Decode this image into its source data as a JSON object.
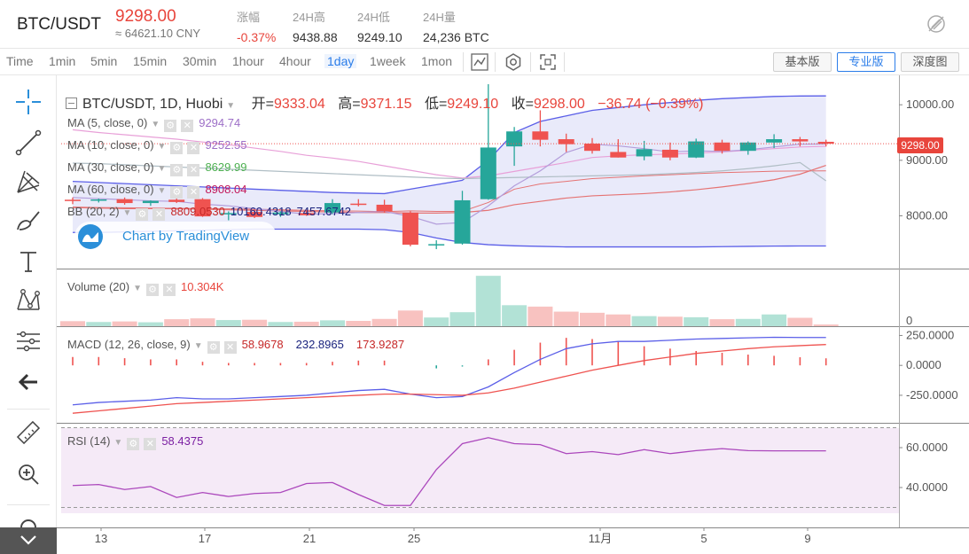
{
  "header": {
    "pair": "BTC/USDT",
    "price": "9298.00",
    "price_cny": "≈ 64621.10 CNY",
    "stats": [
      {
        "label": "涨幅",
        "value": "-0.37%",
        "red": true
      },
      {
        "label": "24H高",
        "value": "9438.88",
        "red": false
      },
      {
        "label": "24H低",
        "value": "9249.10",
        "red": false
      },
      {
        "label": "24H量",
        "value": "24,236 BTC",
        "red": false
      }
    ]
  },
  "toolbar": {
    "timeframes": [
      "Time",
      "1min",
      "5min",
      "15min",
      "30min",
      "1hour",
      "4hour",
      "1day",
      "1week",
      "1mon"
    ],
    "active_timeframe": "1day",
    "views": [
      "基本版",
      "专业版",
      "深度图"
    ],
    "active_view": "专业版"
  },
  "left_tools": [
    "crosshair-icon",
    "trendline-icon",
    "pitchfork-icon",
    "brush-icon",
    "text-icon",
    "pattern-icon",
    "measure-icon",
    "back-arrow-icon",
    "ruler-icon",
    "zoom-in-icon",
    "magnet-icon"
  ],
  "legend": {
    "ohlc_title": "BTC/USDT, 1D, Huobi",
    "open_label": "开=",
    "open": "9333.04",
    "high_label": "高=",
    "high": "9371.15",
    "low_label": "低=",
    "low": "9249.10",
    "close_label": "收=",
    "close": "9298.00",
    "change": "−36.74 (−0.39%)",
    "ma5_label": "MA (5, close, 0)",
    "ma5": "9294.74",
    "ma10_label": "MA (10, close, 0)",
    "ma10": "9252.55",
    "ma30_label": "MA (30, close, 0)",
    "ma30": "8629.99",
    "ma60_label": "MA (60, close, 0)",
    "ma60": "8908.04",
    "bb_label": "BB (20, 2)",
    "bb_mid": "8809.0530",
    "bb_up": "10160.4318",
    "bb_low": "7457.6742",
    "volume_label": "Volume (20)",
    "volume": "10.304K",
    "macd_label": "MACD (12, 26, close, 9)",
    "macd_hist": "58.9678",
    "macd_line": "232.8965",
    "macd_signal": "173.9287",
    "rsi_label": "RSI (14)",
    "rsi": "58.4375"
  },
  "watermark": "Chart by TradingView",
  "colors": {
    "up": "#26a69a",
    "down": "#ef5350",
    "ma5": "#9d6fc7",
    "ma10": "#e8a0d8",
    "ma30": "#4caf50",
    "ma60": "#e84c8a",
    "bb": "#5b5fe8"
  },
  "chart_data": {
    "type": "candlestick",
    "x_ticks": [
      "13",
      "17",
      "21",
      "25",
      "11月",
      "5",
      "9"
    ],
    "price_ticks": [
      "10000.00",
      "9000.00",
      "8000.00"
    ],
    "last_price": "9298.00",
    "volume_ticks": [
      "0"
    ],
    "macd_ticks": [
      "250.0000",
      "0.0000",
      "-250.0000"
    ],
    "rsi_ticks": [
      "60.0000",
      "40.0000"
    ],
    "rsi_range": [
      0,
      100
    ],
    "candles": [
      {
        "o": 8290,
        "h": 8330,
        "l": 8210,
        "c": 8280,
        "v": 180
      },
      {
        "o": 8280,
        "h": 8310,
        "l": 8240,
        "c": 8295,
        "v": 150
      },
      {
        "o": 8300,
        "h": 8330,
        "l": 8200,
        "c": 8230,
        "v": 170
      },
      {
        "o": 8230,
        "h": 8280,
        "l": 8180,
        "c": 8270,
        "v": 140
      },
      {
        "o": 8290,
        "h": 8320,
        "l": 8230,
        "c": 8250,
        "v": 250
      },
      {
        "o": 8300,
        "h": 8320,
        "l": 7980,
        "c": 7990,
        "v": 280
      },
      {
        "o": 8040,
        "h": 8080,
        "l": 7920,
        "c": 8050,
        "v": 220
      },
      {
        "o": 8070,
        "h": 8110,
        "l": 7960,
        "c": 7980,
        "v": 230
      },
      {
        "o": 8030,
        "h": 8080,
        "l": 7980,
        "c": 8060,
        "v": 150
      },
      {
        "o": 8050,
        "h": 8100,
        "l": 8000,
        "c": 8010,
        "v": 160
      },
      {
        "o": 8060,
        "h": 8300,
        "l": 8030,
        "c": 8230,
        "v": 210
      },
      {
        "o": 8220,
        "h": 8300,
        "l": 8170,
        "c": 8215,
        "v": 190
      },
      {
        "o": 8200,
        "h": 8290,
        "l": 8060,
        "c": 8080,
        "v": 260
      },
      {
        "o": 8060,
        "h": 8080,
        "l": 7450,
        "c": 7480,
        "v": 560
      },
      {
        "o": 7480,
        "h": 7560,
        "l": 7400,
        "c": 7490,
        "v": 310
      },
      {
        "o": 7500,
        "h": 8450,
        "l": 7480,
        "c": 8280,
        "v": 500
      },
      {
        "o": 8300,
        "h": 10370,
        "l": 8290,
        "c": 9230,
        "v": 1800
      },
      {
        "o": 9250,
        "h": 9600,
        "l": 8900,
        "c": 9520,
        "v": 750
      },
      {
        "o": 9520,
        "h": 9900,
        "l": 9250,
        "c": 9370,
        "v": 700
      },
      {
        "o": 9380,
        "h": 9480,
        "l": 9150,
        "c": 9290,
        "v": 520
      },
      {
        "o": 9300,
        "h": 9400,
        "l": 9120,
        "c": 9170,
        "v": 480
      },
      {
        "o": 9150,
        "h": 9380,
        "l": 9050,
        "c": 9050,
        "v": 420
      },
      {
        "o": 9070,
        "h": 9350,
        "l": 9000,
        "c": 9200,
        "v": 360
      },
      {
        "o": 9190,
        "h": 9320,
        "l": 9000,
        "c": 9050,
        "v": 340
      },
      {
        "o": 9050,
        "h": 9390,
        "l": 9040,
        "c": 9340,
        "v": 320
      },
      {
        "o": 9320,
        "h": 9370,
        "l": 9120,
        "c": 9170,
        "v": 250
      },
      {
        "o": 9170,
        "h": 9340,
        "l": 9100,
        "c": 9320,
        "v": 260
      },
      {
        "o": 9320,
        "h": 9470,
        "l": 9220,
        "c": 9380,
        "v": 420
      },
      {
        "o": 9380,
        "h": 9420,
        "l": 9250,
        "c": 9340,
        "v": 300
      },
      {
        "o": 9333.04,
        "h": 9371.15,
        "l": 9249.1,
        "c": 9298,
        "v": 60
      }
    ],
    "ma5": [
      8330,
      8310,
      8290,
      8270,
      8260,
      8210,
      8180,
      8130,
      8080,
      8030,
      8040,
      8060,
      8080,
      7990,
      7850,
      7880,
      8180,
      8540,
      8810,
      9140,
      9290,
      9260,
      9210,
      9150,
      9170,
      9160,
      9190,
      9240,
      9290,
      9295
    ],
    "ma10": [
      9550,
      9500,
      9460,
      9420,
      9380,
      9330,
      9280,
      9220,
      9160,
      9090,
      9040,
      8980,
      8900,
      8820,
      8740,
      8680,
      8720,
      8800,
      8880,
      8960,
      9050,
      9080,
      9100,
      9110,
      9130,
      9150,
      9180,
      9210,
      9240,
      9252
    ],
    "ma30": [
      8950,
      8940,
      8920,
      8900,
      8880,
      8860,
      8840,
      8820,
      8800,
      8780,
      8760,
      8740,
      8720,
      8700,
      8680,
      8670,
      8680,
      8690,
      8700,
      8710,
      8720,
      8730,
      8740,
      8760,
      8780,
      8810,
      8850,
      8900,
      8960,
      8630
    ],
    "ma60": [
      8150,
      8140,
      8130,
      8130,
      8130,
      8120,
      8110,
      8100,
      8090,
      8080,
      8070,
      8060,
      8060,
      8050,
      8050,
      8060,
      8100,
      8200,
      8260,
      8320,
      8360,
      8380,
      8400,
      8430,
      8470,
      8520,
      8580,
      8650,
      8750,
      8908
    ],
    "bb_up": [
      8620,
      8600,
      8580,
      8560,
      8540,
      8520,
      8500,
      8480,
      8460,
      8440,
      8420,
      8410,
      8400,
      8480,
      8560,
      8640,
      9000,
      9500,
      9700,
      9800,
      9900,
      9950,
      10000,
      10040,
      10080,
      10110,
      10130,
      10150,
      10158,
      10160
    ],
    "bb_low": [
      7700,
      7700,
      7710,
      7720,
      7730,
      7740,
      7750,
      7760,
      7760,
      7760,
      7760,
      7760,
      7750,
      7700,
      7600,
      7520,
      7480,
      7460,
      7450,
      7440,
      7440,
      7440,
      7440,
      7440,
      7440,
      7445,
      7450,
      7455,
      7457,
      7457
    ],
    "bb_mid": [
      8160,
      8150,
      8145,
      8140,
      8135,
      8130,
      8125,
      8120,
      8110,
      8100,
      8090,
      8085,
      8075,
      8090,
      8080,
      8080,
      8240,
      8480,
      8575,
      8620,
      8670,
      8695,
      8720,
      8740,
      8760,
      8778,
      8790,
      8803,
      8808,
      8809
    ],
    "macd_line": [
      -330,
      -310,
      -300,
      -290,
      -270,
      -280,
      -280,
      -270,
      -260,
      -250,
      -230,
      -210,
      -200,
      -240,
      -270,
      -260,
      -180,
      -60,
      50,
      140,
      180,
      200,
      200,
      210,
      220,
      225,
      230,
      235,
      233,
      233
    ],
    "macd_signal": [
      -400,
      -380,
      -360,
      -340,
      -320,
      -310,
      -300,
      -290,
      -280,
      -270,
      -260,
      -250,
      -240,
      -240,
      -245,
      -250,
      -230,
      -190,
      -140,
      -90,
      -40,
      0,
      40,
      70,
      100,
      120,
      140,
      155,
      165,
      174
    ],
    "macd_hist": [
      70,
      70,
      60,
      50,
      50,
      30,
      20,
      20,
      20,
      20,
      30,
      40,
      40,
      0,
      -25,
      -10,
      50,
      130,
      190,
      230,
      220,
      200,
      160,
      140,
      120,
      105,
      90,
      80,
      68,
      59
    ],
    "rsi": [
      41,
      41.5,
      39,
      40.5,
      35,
      37.5,
      35.5,
      37,
      37.5,
      42,
      42.5,
      36.5,
      31,
      31,
      49,
      62,
      65,
      62,
      61.5,
      57,
      58,
      56.5,
      59,
      57,
      58.5,
      59.5,
      58.5,
      58.4,
      58.4,
      58.4
    ]
  }
}
